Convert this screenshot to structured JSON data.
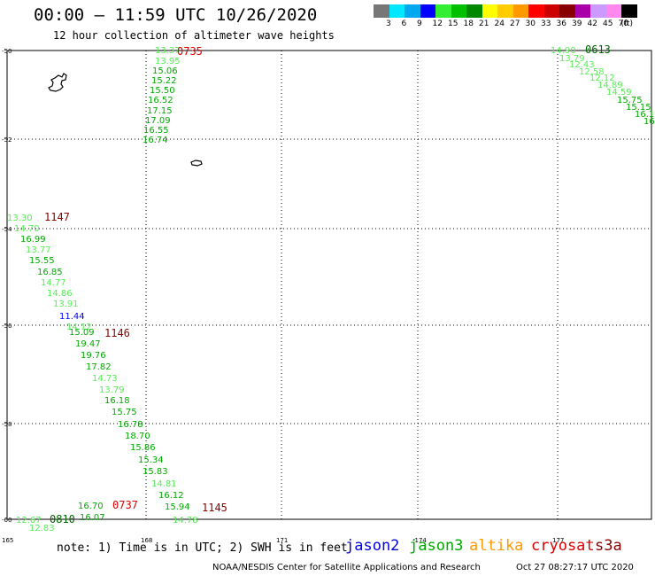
{
  "header": {
    "title": "00:00 – 11:59 UTC 10/26/2020",
    "subtitle": "12 hour collection of altimeter wave heights"
  },
  "legend": {
    "unit": "(ft)",
    "bins": [
      {
        "label": "3",
        "color": "#777777"
      },
      {
        "label": "6",
        "color": "#00e8ff"
      },
      {
        "label": "9",
        "color": "#00a8f0"
      },
      {
        "label": "12",
        "color": "#0000ff"
      },
      {
        "label": "15",
        "color": "#33ee33"
      },
      {
        "label": "18",
        "color": "#00c000"
      },
      {
        "label": "21",
        "color": "#008800"
      },
      {
        "label": "24",
        "color": "#ffff00"
      },
      {
        "label": "27",
        "color": "#ffcc00"
      },
      {
        "label": "30",
        "color": "#ff9900"
      },
      {
        "label": "33",
        "color": "#ff0000"
      },
      {
        "label": "36",
        "color": "#cc0000"
      },
      {
        "label": "39",
        "color": "#880000"
      },
      {
        "label": "42",
        "color": "#aa00aa"
      },
      {
        "label": "45",
        "color": "#cc99ff"
      },
      {
        "label": "70",
        "color": "#ff88ee"
      },
      {
        "label": "",
        "color": "#000000"
      }
    ]
  },
  "map": {
    "lat_labels": [
      "-50",
      "-52",
      "-54",
      "-56",
      "-58",
      "-60"
    ],
    "lon_labels": [
      "165",
      "168",
      "171",
      "-174",
      "177"
    ]
  },
  "tracks": [
    {
      "name": "track-0735",
      "time": "0735",
      "time_color": "#dd0000",
      "heights": [
        {
          "v": "13.37",
          "c": "#55ee55"
        },
        {
          "v": "13.95",
          "c": "#55ee55"
        },
        {
          "v": "15.06",
          "c": "#00aa00"
        },
        {
          "v": "15.22",
          "c": "#00aa00"
        },
        {
          "v": "15.50",
          "c": "#00aa00"
        },
        {
          "v": "16.52",
          "c": "#00aa00"
        },
        {
          "v": "17.15",
          "c": "#00aa00"
        },
        {
          "v": "17.09",
          "c": "#00aa00"
        },
        {
          "v": "16.55",
          "c": "#00aa00"
        },
        {
          "v": "16.74",
          "c": "#00aa00"
        }
      ]
    },
    {
      "name": "track-0613",
      "time": "0613",
      "time_color": "#006600",
      "heights": [
        {
          "v": "14.90",
          "c": "#55ee55"
        },
        {
          "v": "13.79",
          "c": "#55ee55"
        },
        {
          "v": "12.43",
          "c": "#55ee55"
        },
        {
          "v": "12.58",
          "c": "#55ee55"
        },
        {
          "v": "12.12",
          "c": "#55ee55"
        },
        {
          "v": "14.89",
          "c": "#55ee55"
        },
        {
          "v": "14.59",
          "c": "#55ee55"
        },
        {
          "v": "15.75",
          "c": "#00aa00"
        },
        {
          "v": "15.15",
          "c": "#00aa00"
        },
        {
          "v": "16.1",
          "c": "#00aa00"
        },
        {
          "v": "16",
          "c": "#00aa00"
        }
      ]
    },
    {
      "name": "track-1147",
      "time": "1147",
      "time_color": "#880000",
      "heights": [
        {
          "v": "13.30",
          "c": "#55ee55"
        },
        {
          "v": "14.70",
          "c": "#55ee55"
        },
        {
          "v": "16.99",
          "c": "#00aa00"
        },
        {
          "v": "13.77",
          "c": "#55ee55"
        },
        {
          "v": "15.55",
          "c": "#00aa00"
        },
        {
          "v": "16.85",
          "c": "#00aa00"
        },
        {
          "v": "14.77",
          "c": "#55ee55"
        },
        {
          "v": "14.86",
          "c": "#55ee55"
        },
        {
          "v": "13.91",
          "c": "#55ee55"
        },
        {
          "v": "11.44",
          "c": "#0000ff"
        },
        {
          "v": "14.12",
          "c": "#55ee55"
        }
      ]
    },
    {
      "name": "track-1146",
      "time": "1146",
      "time_color": "#880000",
      "heights": [
        {
          "v": "15.09",
          "c": "#00aa00"
        },
        {
          "v": "19.47",
          "c": "#00aa00"
        },
        {
          "v": "19.76",
          "c": "#00aa00"
        },
        {
          "v": "17.82",
          "c": "#00aa00"
        },
        {
          "v": "14.73",
          "c": "#55ee55"
        },
        {
          "v": "13.79",
          "c": "#55ee55"
        },
        {
          "v": "16.18",
          "c": "#00aa00"
        },
        {
          "v": "15.75",
          "c": "#00aa00"
        },
        {
          "v": "16.78",
          "c": "#00aa00"
        },
        {
          "v": "18.70",
          "c": "#00aa00"
        },
        {
          "v": "15.86",
          "c": "#00aa00"
        },
        {
          "v": "15.34",
          "c": "#00aa00"
        },
        {
          "v": "15.83",
          "c": "#00aa00"
        },
        {
          "v": "14.81",
          "c": "#55ee55"
        },
        {
          "v": "16.12",
          "c": "#00aa00"
        },
        {
          "v": "15.94",
          "c": "#00aa00"
        },
        {
          "v": "14.78",
          "c": "#55ee55"
        }
      ]
    },
    {
      "name": "track-1145",
      "time": "1145",
      "time_color": "#880000"
    },
    {
      "name": "track-0737",
      "time": "0737",
      "time_color": "#dd0000",
      "heights": [
        {
          "v": "16.70",
          "c": "#00aa00"
        },
        {
          "v": "16.07",
          "c": "#00aa00"
        }
      ]
    },
    {
      "name": "track-0810",
      "time": "0810",
      "time_color": "#006600",
      "heights": [
        {
          "v": "12.67",
          "c": "#55ee55"
        },
        {
          "v": "12.83",
          "c": "#55ee55"
        }
      ]
    }
  ],
  "footer": {
    "note": "note: 1) Time is in UTC; 2) SWH is in feet",
    "satellites": [
      {
        "name": "jason2",
        "color": "#0000dd"
      },
      {
        "name": "jason3",
        "color": "#00aa00"
      },
      {
        "name": "altika",
        "color": "#ff9900"
      },
      {
        "name": "cryosat",
        "color": "#dd0000"
      },
      {
        "name": "s3a",
        "color": "#880000"
      }
    ],
    "credit": "NOAA/NESDIS Center for Satellite Applications and Research",
    "generated": "Oct 27 08:27:17 UTC 2020"
  }
}
